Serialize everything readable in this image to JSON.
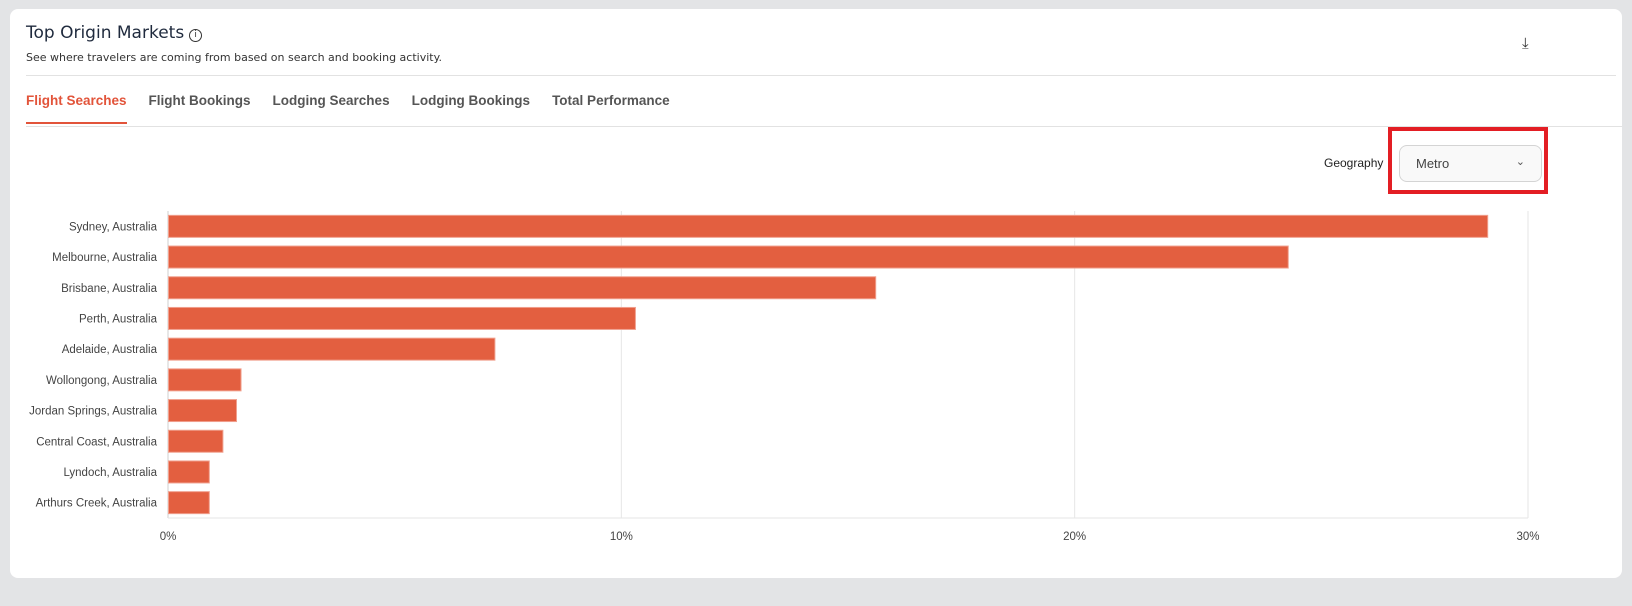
{
  "header": {
    "title": "Top Origin Markets",
    "subtitle": "See where travelers are coming from based on search and booking activity.",
    "info_icon": "info-icon",
    "download_icon": "download-icon"
  },
  "tabs": [
    {
      "label": "Flight Searches",
      "active": true
    },
    {
      "label": "Flight Bookings",
      "active": false
    },
    {
      "label": "Lodging Searches",
      "active": false
    },
    {
      "label": "Lodging Bookings",
      "active": false
    },
    {
      "label": "Total Performance",
      "active": false
    }
  ],
  "filters": {
    "geography_label": "Geography",
    "geography_value": "Metro"
  },
  "colors": {
    "accent": "#e2543a",
    "bar": "#e35f40",
    "highlight": "#e31e24"
  },
  "chart_data": {
    "type": "bar",
    "orientation": "horizontal",
    "categories": [
      "Sydney, Australia",
      "Melbourne, Australia",
      "Brisbane, Australia",
      "Perth, Australia",
      "Adelaide, Australia",
      "Wollongong, Australia",
      "Jordan Springs, Australia",
      "Central Coast, Australia",
      "Lyndoch, Australia",
      "Arthurs Creek, Australia"
    ],
    "values": [
      29.1,
      24.7,
      15.6,
      10.3,
      7.2,
      1.6,
      1.5,
      1.2,
      0.9,
      0.9
    ],
    "xlim": [
      0,
      30
    ],
    "xticks": [
      "0%",
      "10%",
      "20%",
      "30%"
    ],
    "xtick_values": [
      0,
      10,
      20,
      30
    ],
    "unit": "%",
    "grid": true
  }
}
